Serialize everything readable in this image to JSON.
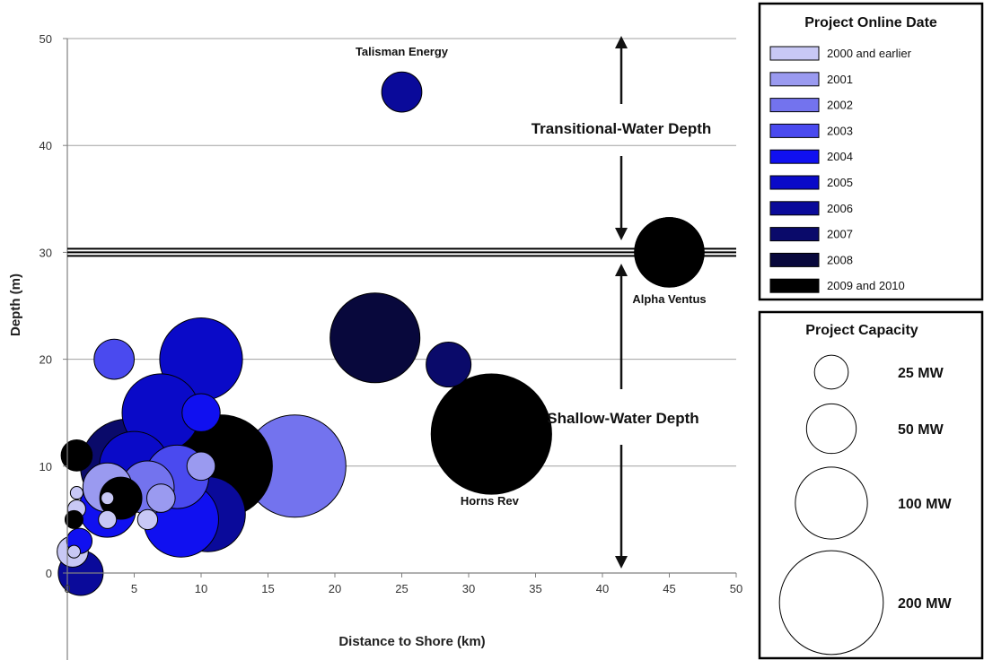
{
  "chart_data": {
    "type": "scatter",
    "xlabel": "Distance to Shore (km)",
    "ylabel": "Depth (m)",
    "xlim": [
      0,
      50
    ],
    "ylim": [
      0,
      50
    ],
    "x_ticks": [
      0,
      5,
      10,
      15,
      20,
      25,
      30,
      35,
      40,
      45,
      50
    ],
    "y_ticks": [
      0,
      10,
      20,
      30,
      40,
      50
    ],
    "grid": "horizontal",
    "annotations": {
      "transitional": "Transitional-Water Depth",
      "shallow": "Shallow-Water Depth",
      "boundary_depth": 30
    },
    "color_legend": {
      "title": "Project Online Date",
      "entries": [
        {
          "label": "2000 and earlier",
          "color": "#c8c8f5"
        },
        {
          "label": "2001",
          "color": "#9a9af0"
        },
        {
          "label": "2002",
          "color": "#7373ee"
        },
        {
          "label": "2003",
          "color": "#4a4aef"
        },
        {
          "label": "2004",
          "color": "#1010f0"
        },
        {
          "label": "2005",
          "color": "#0a0ac8"
        },
        {
          "label": "2006",
          "color": "#0a0a9a"
        },
        {
          "label": "2007",
          "color": "#0a0a6a"
        },
        {
          "label": "2008",
          "color": "#08083c"
        },
        {
          "label": "2009 and 2010",
          "color": "#000000"
        }
      ]
    },
    "size_legend": {
      "title": "Project Capacity",
      "entries": [
        {
          "label": "25 MW",
          "mw": 25
        },
        {
          "label": "50  MW",
          "mw": 50
        },
        {
          "label": "100 MW",
          "mw": 100
        },
        {
          "label": "200 MW",
          "mw": 200
        }
      ]
    },
    "points": [
      {
        "x": 25,
        "y": 45,
        "mw": 20,
        "group": 6,
        "label": "Talisman Energy"
      },
      {
        "x": 45,
        "y": 30,
        "mw": 60,
        "group": 9,
        "label": "Alpha Ventus"
      },
      {
        "x": 31.7,
        "y": 13,
        "mw": 180,
        "group": 9,
        "label": "Horns Rev"
      },
      {
        "x": 23,
        "y": 22,
        "mw": 100,
        "group": 8
      },
      {
        "x": 28.5,
        "y": 19.5,
        "mw": 25,
        "group": 7
      },
      {
        "x": 17,
        "y": 10,
        "mw": 130,
        "group": 2
      },
      {
        "x": 10,
        "y": 20,
        "mw": 85,
        "group": 5
      },
      {
        "x": 3.5,
        "y": 20,
        "mw": 20,
        "group": 3
      },
      {
        "x": 7,
        "y": 15,
        "mw": 75,
        "group": 5
      },
      {
        "x": 10,
        "y": 15,
        "mw": 18,
        "group": 4
      },
      {
        "x": 4.5,
        "y": 10,
        "mw": 110,
        "group": 7
      },
      {
        "x": 11.5,
        "y": 10,
        "mw": 130,
        "group": 9
      },
      {
        "x": 5,
        "y": 10,
        "mw": 60,
        "group": 5
      },
      {
        "x": 10.5,
        "y": 5.5,
        "mw": 70,
        "group": 6
      },
      {
        "x": 8.5,
        "y": 5,
        "mw": 70,
        "group": 4
      },
      {
        "x": 8,
        "y": 8,
        "mw": 85,
        "group": 9
      },
      {
        "x": 8.2,
        "y": 9,
        "mw": 50,
        "group": 3
      },
      {
        "x": 6,
        "y": 8,
        "mw": 35,
        "group": 2
      },
      {
        "x": 10,
        "y": 10,
        "mw": 10,
        "group": 1
      },
      {
        "x": 3,
        "y": 6,
        "mw": 40,
        "group": 4
      },
      {
        "x": 3,
        "y": 8,
        "mw": 30,
        "group": 1
      },
      {
        "x": 4,
        "y": 7,
        "mw": 22,
        "group": 9
      },
      {
        "x": 7,
        "y": 7,
        "mw": 10,
        "group": 1
      },
      {
        "x": 6,
        "y": 5,
        "mw": 5,
        "group": 0
      },
      {
        "x": 3,
        "y": 5,
        "mw": 4,
        "group": 0
      },
      {
        "x": 3,
        "y": 7,
        "mw": 2,
        "group": 0
      },
      {
        "x": 0.7,
        "y": 11,
        "mw": 12,
        "group": 9
      },
      {
        "x": 0.7,
        "y": 6,
        "mw": 4,
        "group": 0
      },
      {
        "x": 0.7,
        "y": 7.5,
        "mw": 2,
        "group": 0
      },
      {
        "x": 0.5,
        "y": 5,
        "mw": 4,
        "group": 9
      },
      {
        "x": 0.9,
        "y": 3,
        "mw": 8,
        "group": 4
      },
      {
        "x": 0.4,
        "y": 2,
        "mw": 12,
        "group": 0
      },
      {
        "x": 0.5,
        "y": 2,
        "mw": 2,
        "group": 0
      },
      {
        "x": 1.0,
        "y": 0,
        "mw": 25,
        "group": 6
      }
    ]
  }
}
